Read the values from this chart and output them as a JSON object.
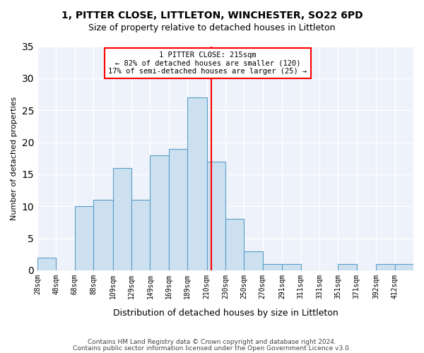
{
  "title1": "1, PITTER CLOSE, LITTLETON, WINCHESTER, SO22 6PD",
  "title2": "Size of property relative to detached houses in Littleton",
  "xlabel": "Distribution of detached houses by size in Littleton",
  "ylabel": "Number of detached properties",
  "footer1": "Contains HM Land Registry data © Crown copyright and database right 2024.",
  "footer2": "Contains public sector information licensed under the Open Government Licence v3.0.",
  "bar_color": "#cce0f0",
  "bar_edge_color": "#5a9ec9",
  "background_color": "#eef2fa",
  "grid_color": "#ffffff",
  "annotation_text": "1 PITTER CLOSE: 215sqm\n← 82% of detached houses are smaller (120)\n17% of semi-detached houses are larger (25) →",
  "vline_x": 215,
  "vline_color": "red",
  "bins": [
    28,
    48,
    68,
    88,
    109,
    129,
    149,
    169,
    189,
    210,
    230,
    250,
    270,
    291,
    311,
    331,
    351,
    371,
    392,
    412,
    432
  ],
  "bar_labels": [
    "28sqm",
    "48sqm",
    "68sqm",
    "88sqm",
    "109sqm",
    "129sqm",
    "149sqm",
    "169sqm",
    "189sqm",
    "210sqm",
    "230sqm",
    "250sqm",
    "270sqm",
    "291sqm",
    "311sqm",
    "331sqm",
    "351sqm",
    "371sqm",
    "392sqm",
    "412sqm"
  ],
  "bar_heights": [
    2,
    0,
    10,
    11,
    16,
    11,
    18,
    19,
    27,
    17,
    8,
    3,
    1,
    1,
    0,
    0,
    1,
    0,
    1,
    1
  ],
  "ylim": [
    0,
    35
  ],
  "yticks": [
    0,
    5,
    10,
    15,
    20,
    25,
    30,
    35
  ]
}
